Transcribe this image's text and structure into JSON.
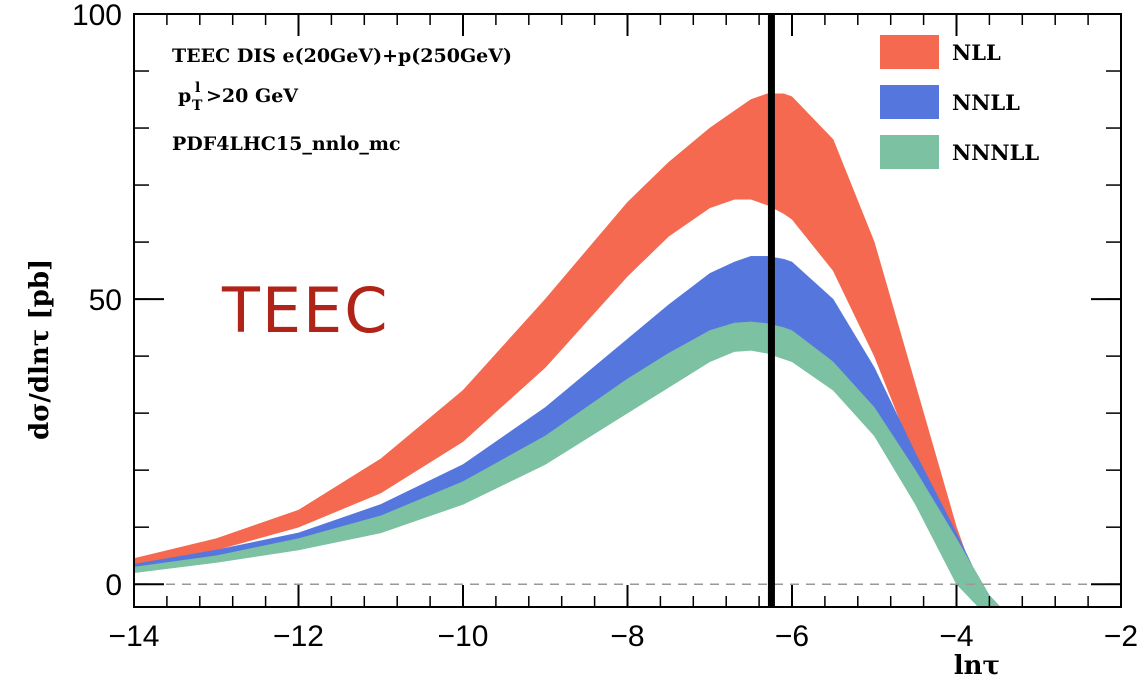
{
  "chart_data": {
    "type": "area",
    "xlabel": "lnτ",
    "ylabel": "dσ/dlnτ  [pb]",
    "xlim": [
      -14,
      -2
    ],
    "ylim": [
      -4,
      100
    ],
    "x_ticks": [
      -14,
      -12,
      -10,
      -8,
      -6,
      -4,
      -2
    ],
    "x_tick_labels": [
      "−14",
      "−12",
      "−10",
      "−8",
      "−6",
      "−4",
      "−2"
    ],
    "y_ticks": [
      0,
      50,
      100
    ],
    "y_tick_labels": [
      "0",
      "50",
      "100"
    ],
    "annotations": [
      "TEEC  DIS  e(20GeV)+p(250GeV)",
      "p",
      "l",
      "T",
      ">20 GeV",
      "PDF4LHC15_nnlo_mc"
    ],
    "big_label": "TEEC",
    "legend_position": "top-right",
    "reference_line": {
      "y": 0,
      "style": "dashed"
    },
    "vertical_marker": {
      "x": -6.25,
      "style": "thick-black"
    },
    "x": [
      -14,
      -13,
      -12,
      -11,
      -10,
      -9,
      -8,
      -7.5,
      -7,
      -6.7,
      -6.5,
      -6.3,
      -6.1,
      -6,
      -5.5,
      -5,
      -4.5,
      -4,
      -3.8,
      -3.6,
      -3.4
    ],
    "series": [
      {
        "name": "NLL",
        "color": "#f4694f",
        "upper": [
          4.5,
          8,
          13,
          22,
          34,
          50,
          67,
          74,
          80,
          83,
          85,
          86,
          86,
          85.5,
          78,
          60,
          35,
          10,
          2,
          -3,
          -5
        ],
        "lower": [
          3,
          6,
          10,
          16,
          25,
          38,
          54,
          61,
          66,
          67.5,
          67.5,
          66.5,
          65,
          64,
          55,
          40,
          22,
          3,
          -3,
          -6,
          -7
        ]
      },
      {
        "name": "NNLL",
        "color": "#5577dd",
        "upper": [
          3.5,
          6,
          9,
          14,
          21,
          31,
          43,
          49,
          54.5,
          56.5,
          57.5,
          57.5,
          57,
          56.5,
          50,
          38,
          23,
          9,
          3,
          -2,
          -5
        ],
        "lower": [
          2.8,
          5,
          7.5,
          11.5,
          18,
          26,
          36,
          40.5,
          44,
          45.5,
          46,
          45.5,
          44.5,
          44,
          38,
          28,
          16,
          1,
          -3,
          -6,
          -8
        ]
      },
      {
        "name": "NNNLL",
        "color": "#7cc1a1",
        "upper": [
          3,
          5,
          8,
          12,
          18,
          26,
          36,
          40.5,
          44.5,
          45.8,
          46,
          45.7,
          45,
          44.5,
          39,
          31,
          20,
          8,
          3,
          -2,
          -5
        ],
        "lower": [
          2,
          3.8,
          6,
          9,
          14,
          21,
          30,
          34.5,
          39,
          40.8,
          41,
          40.5,
          39.5,
          39,
          34,
          26,
          14,
          0,
          -3,
          -6,
          -8
        ]
      }
    ]
  }
}
